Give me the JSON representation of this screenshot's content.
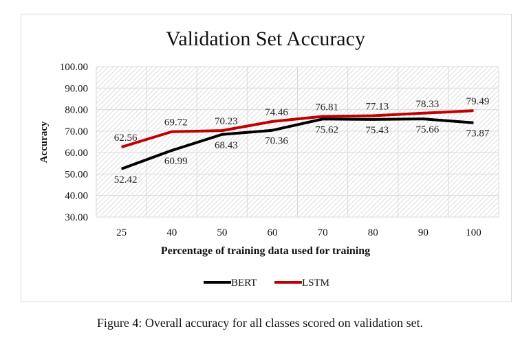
{
  "chart_data": {
    "type": "line",
    "title": "Validation Set Accuracy",
    "xlabel": "Percentage of training data used for training",
    "ylabel": "Accuracy",
    "categories": [
      "25",
      "40",
      "50",
      "60",
      "70",
      "80",
      "90",
      "100"
    ],
    "ylim": [
      30,
      100
    ],
    "yticks": [
      "30.00",
      "40.00",
      "50.00",
      "60.00",
      "70.00",
      "80.00",
      "90.00",
      "100.00"
    ],
    "grid": true,
    "legend": "bottom",
    "series": [
      {
        "name": "BERT",
        "color": "#000000",
        "values": [
          52.42,
          60.99,
          68.43,
          70.36,
          75.62,
          75.43,
          75.66,
          73.87
        ],
        "labels": [
          "52.42",
          "60.99",
          "68.43",
          "70.36",
          "75.62",
          "75.43",
          "75.66",
          "73.87"
        ]
      },
      {
        "name": "LSTM",
        "color": "#c00000",
        "values": [
          62.56,
          69.72,
          70.23,
          74.46,
          76.81,
          77.13,
          78.33,
          79.49
        ],
        "labels": [
          "62.56",
          "69.72",
          "70.23",
          "74.46",
          "76.81",
          "77.13",
          "78.33",
          "79.49"
        ]
      }
    ]
  },
  "caption": "Figure 4: Overall accuracy for all classes scored on validation set."
}
